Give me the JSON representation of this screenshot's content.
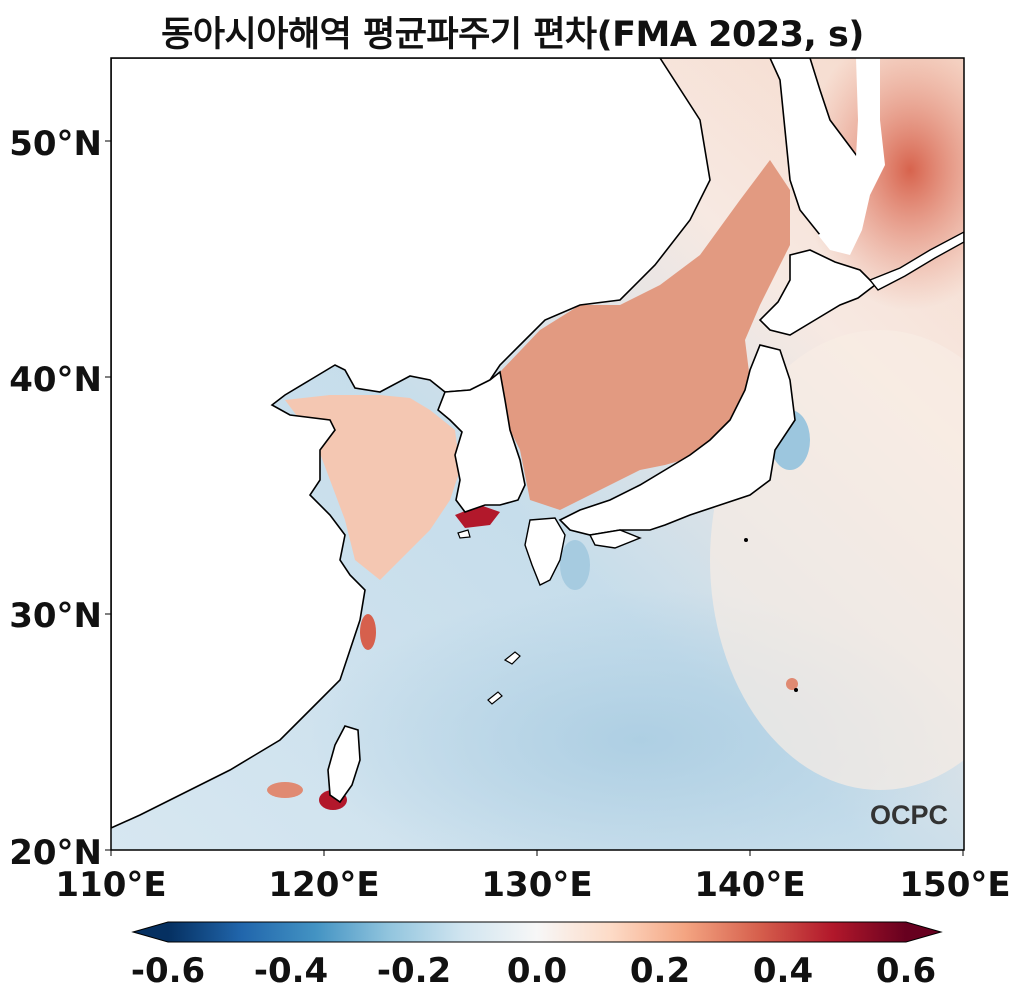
{
  "title": "동아시아해역 평균파주기 편차(FMA 2023, s)",
  "logo_text": "OCPC",
  "map": {
    "lon_ticks": [
      "110°E",
      "120°E",
      "130°E",
      "140°E",
      "150°E"
    ],
    "lat_ticks": [
      "20°N",
      "30°N",
      "40°N",
      "50°N"
    ],
    "lon_range": [
      110,
      150
    ],
    "lat_range": [
      20,
      53.5
    ],
    "colormap": "RdBu_r",
    "land_color": "#ffffff",
    "coastline_color": "#000000"
  },
  "colorbar": {
    "ticks": [
      "-0.6",
      "-0.4",
      "-0.2",
      "0.0",
      "0.2",
      "0.4",
      "0.6"
    ],
    "range": [
      -0.6,
      0.6
    ],
    "extend": "both",
    "colors": [
      "#053061",
      "#2166ac",
      "#4393c3",
      "#92c5de",
      "#d1e5f0",
      "#f7f7f7",
      "#fddbc7",
      "#f4a582",
      "#d6604d",
      "#b2182b",
      "#67001f"
    ]
  }
}
